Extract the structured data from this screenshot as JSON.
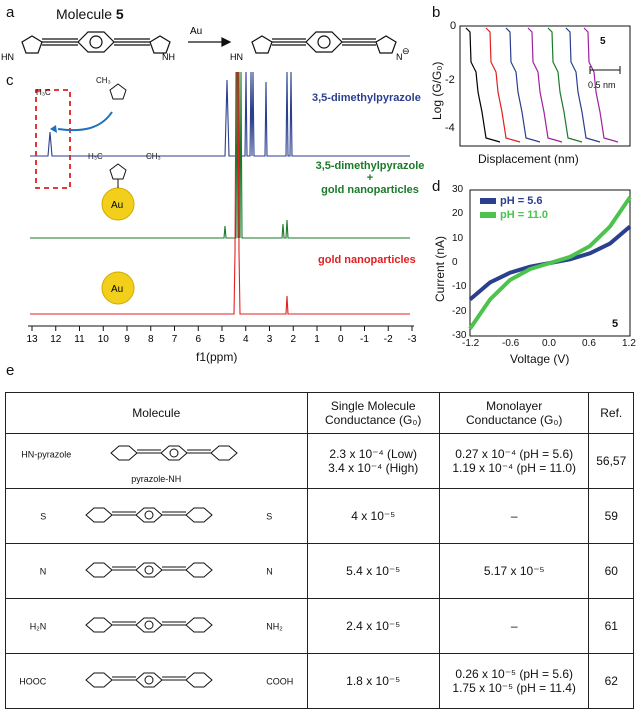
{
  "panel_labels": {
    "a": "a",
    "b": "b",
    "c": "c",
    "d": "d",
    "e": "e"
  },
  "panel_a": {
    "title_prefix": "Molecule",
    "title_number": "5",
    "arrow_label": "Au"
  },
  "panel_c": {
    "spectra": [
      {
        "label": "3,5-dimethylpyrazole",
        "color": "#2b3f8f"
      },
      {
        "label": "3,5-dimethylpyrazole",
        "label_plus": "+",
        "label_line2": "gold nanoparticles",
        "color": "#1a7a2a"
      },
      {
        "label": "gold nanoparticles",
        "color": "#e02020"
      }
    ],
    "au_label": "Au",
    "xlabel": "f1(ppm)",
    "xticks": [
      "13",
      "12",
      "11",
      "10",
      "9",
      "8",
      "7",
      "6",
      "5",
      "4",
      "3",
      "2",
      "1",
      "0",
      "-1",
      "-2",
      "-3"
    ]
  },
  "panel_b": {
    "ylabel": "Log (G/G₀)",
    "xlabel": "Displacement (nm)",
    "yticks": [
      "0",
      "-2",
      "-4"
    ],
    "scale_label": "0.5 nm",
    "molecule_label": "5",
    "trace_colors": [
      "#000000",
      "#e02020",
      "#2b3f8f",
      "#a020a0",
      "#1a7a2a",
      "#2b3f8f",
      "#a020a0"
    ]
  },
  "panel_d": {
    "ylabel": "Current (nA)",
    "xlabel": "Voltage (V)",
    "molecule_label": "5",
    "yticks": [
      "30",
      "20",
      "10",
      "0",
      "-10",
      "-20",
      "-30"
    ],
    "xticks": [
      "-1.2",
      "-0.6",
      "0.0",
      "0.6",
      "1.2"
    ],
    "legend": [
      {
        "label": "pH = 5.6",
        "color": "#2b3f8f"
      },
      {
        "label": "pH = 11.0",
        "color": "#4cc34c"
      }
    ]
  },
  "chart_data": [
    {
      "type": "line",
      "title": "",
      "xlabel": "Voltage (V)",
      "ylabel": "Current (nA)",
      "xlim": [
        -1.2,
        1.2
      ],
      "ylim": [
        -30,
        30
      ],
      "series": [
        {
          "name": "pH = 5.6",
          "x": [
            -1.2,
            -0.9,
            -0.6,
            -0.3,
            0.0,
            0.3,
            0.6,
            0.9,
            1.2
          ],
          "y": [
            -15,
            -8,
            -4,
            -1.5,
            0,
            1.5,
            4,
            8,
            15
          ]
        },
        {
          "name": "pH = 11.0",
          "x": [
            -1.2,
            -0.9,
            -0.6,
            -0.3,
            0.0,
            0.3,
            0.6,
            0.9,
            1.2
          ],
          "y": [
            -27,
            -15,
            -7,
            -2.5,
            0,
            2.5,
            7,
            15,
            27
          ]
        }
      ]
    }
  ],
  "table": {
    "headers": {
      "molecule": "Molecule",
      "single_line1": "Single Molecule",
      "single_line2": "Conductance (G₀)",
      "mono_line1": "Monolayer",
      "mono_line2": "Conductance (G₀)",
      "ref": "Ref."
    },
    "rows": [
      {
        "single": [
          "2.3 x 10⁻⁴ (Low)",
          "3.4 x 10⁻⁴ (High)"
        ],
        "mono": [
          "0.27 x 10⁻⁴ (pH = 5.6)",
          "1.19 x 10⁻⁴ (pH = 11.0)"
        ],
        "ref": "56,57",
        "left_group": "HN-pyrazole",
        "right_group": "pyrazole-NH"
      },
      {
        "single": [
          "4 x 10⁻⁵"
        ],
        "mono": [
          "–"
        ],
        "ref": "59",
        "left_group": "S",
        "right_group": "S"
      },
      {
        "single": [
          "5.4 x 10⁻⁵"
        ],
        "mono": [
          "5.17 x 10⁻⁵"
        ],
        "ref": "60",
        "left_group": "N",
        "right_group": "N"
      },
      {
        "single": [
          "2.4 x 10⁻⁵"
        ],
        "mono": [
          "–"
        ],
        "ref": "61",
        "left_group": "H₂N",
        "right_group": "NH₂"
      },
      {
        "single": [
          "1.8 x 10⁻⁵"
        ],
        "mono": [
          "0.26 x 10⁻⁵ (pH = 5.6)",
          "1.75 x 10⁻⁵ (pH = 11.4)"
        ],
        "ref": "62",
        "left_group": "HOOC",
        "right_group": "COOH"
      }
    ],
    "atom_labels": {
      "hn": "HN",
      "nh": "NH",
      "h": "H",
      "n": "N",
      "s": "S",
      "h2n": "H₂N",
      "nh2": "NH₂",
      "hooc": "HOOC",
      "cooh": "COOH",
      "h3c": "H₃C",
      "ch3": "CH₃"
    }
  }
}
